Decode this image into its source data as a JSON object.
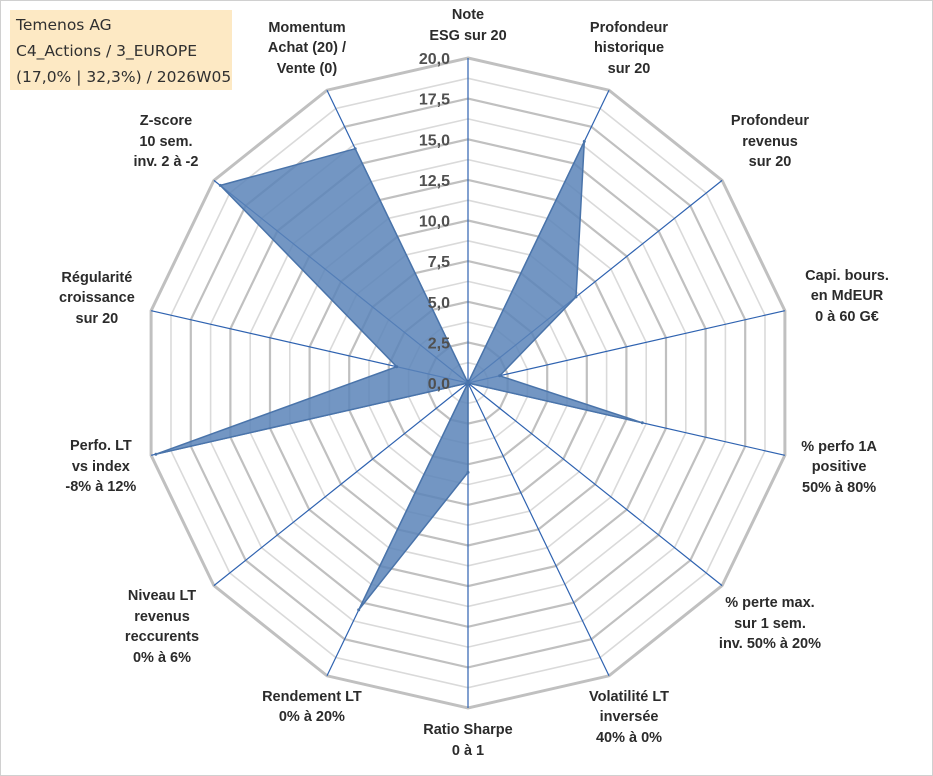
{
  "info": {
    "line1": "Temenos AG",
    "line2": "C4_Actions / 3_EUROPE",
    "line3": "(17,0% | 32,3%) / 2026W05"
  },
  "colors": {
    "fill": "#5b84b8",
    "stroke": "#4a74aa",
    "axis": "#2e62b0",
    "ring_outer": "#c0c0c0",
    "ring_inner": "#dadada"
  },
  "chart_data": {
    "type": "radar",
    "title": "Temenos AG",
    "range": [
      0,
      20
    ],
    "ticks": [
      "0,0",
      "2,5",
      "5,0",
      "7,5",
      "10,0",
      "12,5",
      "15,0",
      "17,5",
      "20,0"
    ],
    "ring_step": 1.25,
    "axes": [
      {
        "label": [
          "Note",
          "ESG sur 20"
        ],
        "value": 0
      },
      {
        "label": [
          "Profondeur",
          "historique",
          "sur 20"
        ],
        "value": 16.5
      },
      {
        "label": [
          "Profondeur",
          "revenus",
          "sur 20"
        ],
        "value": 8.5
      },
      {
        "label": [
          "Capi. bours.",
          "en MdEUR",
          "0 à 60 G€"
        ],
        "value": 2.0
      },
      {
        "label": [
          "% perfo 1A",
          "positive",
          "50% à 80%"
        ],
        "value": 11.0
      },
      {
        "label": [
          "% perte max.",
          "sur 1 sem.",
          "inv. 50% à 20%"
        ],
        "value": 0
      },
      {
        "label": [
          "Volatilité LT",
          "inversée",
          "40% à 0%"
        ],
        "value": 0
      },
      {
        "label": [
          "Ratio Sharpe",
          "0 à 1"
        ],
        "value": 5.5
      },
      {
        "label": [
          "Rendement LT",
          "0% à 20%"
        ],
        "value": 15.5
      },
      {
        "label": [
          "Niveau LT",
          "revenus",
          "reccurents",
          "0% à 6%"
        ],
        "value": 0
      },
      {
        "label": [
          "Perfo. LT",
          "vs index",
          "-8% à 12%"
        ],
        "value": 19.7
      },
      {
        "label": [
          "Régularité",
          "croissance",
          "sur 20"
        ],
        "value": 4.5
      },
      {
        "label": [
          "Z-score",
          "10 sem.",
          "inv. 2 à -2"
        ],
        "value": 19.5
      },
      {
        "label": [
          "Momentum",
          "Achat (20) /",
          "Vente (0)"
        ],
        "value": 16.0
      }
    ]
  }
}
